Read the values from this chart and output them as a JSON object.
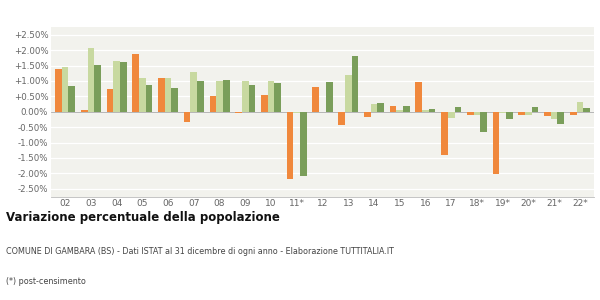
{
  "years": [
    "02",
    "03",
    "04",
    "05",
    "06",
    "07",
    "08",
    "09",
    "10",
    "11*",
    "12",
    "13",
    "14",
    "15",
    "16",
    "17",
    "18*",
    "19*",
    "20*",
    "21*",
    "22*"
  ],
  "gambara": [
    1.38,
    0.05,
    0.75,
    1.88,
    1.1,
    -0.32,
    0.52,
    -0.05,
    0.55,
    -2.18,
    0.8,
    -0.42,
    -0.18,
    0.18,
    0.95,
    -1.4,
    -0.1,
    -2.03,
    -0.1,
    -0.15,
    -0.1
  ],
  "provincia_bs": [
    1.45,
    2.08,
    1.65,
    1.08,
    1.1,
    1.3,
    1.0,
    1.0,
    1.0,
    -0.05,
    0.0,
    1.18,
    0.25,
    0.05,
    0.07,
    -0.2,
    -0.1,
    -0.05,
    -0.1,
    -0.25,
    0.32
  ],
  "lombardia": [
    0.82,
    1.52,
    1.6,
    0.87,
    0.78,
    1.0,
    1.02,
    0.88,
    0.93,
    -2.1,
    0.97,
    1.82,
    0.3,
    0.2,
    0.1,
    0.15,
    -0.65,
    -0.25,
    0.15,
    -0.4,
    0.12
  ],
  "gambara_color": "#f0883c",
  "provincia_color": "#c8d9a0",
  "lombardia_color": "#7a9e5a",
  "bg_color": "#f2f2ed",
  "title": "Variazione percentuale della popolazione",
  "subtitle": "COMUNE DI GAMBARA (BS) - Dati ISTAT al 31 dicembre di ogni anno - Elaborazione TUTTITALIA.IT",
  "footnote": "(*) post-censimento",
  "ylim": [
    -2.75,
    2.75
  ],
  "yticks": [
    -2.5,
    -2.0,
    -1.5,
    -1.0,
    -0.5,
    0.0,
    0.5,
    1.0,
    1.5,
    2.0,
    2.5
  ],
  "bar_width": 0.26
}
